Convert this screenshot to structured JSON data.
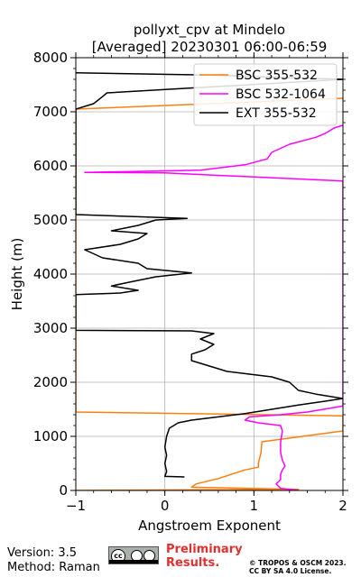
{
  "chart_data": {
    "type": "line",
    "title": [
      "pollyxt_cpv at Mindelo",
      "[Averaged] 20230301 06:00-06:59"
    ],
    "xlabel": "Angstroem Exponent",
    "ylabel": "Height (m)",
    "xlim": [
      -1,
      2
    ],
    "ylim": [
      0,
      8000
    ],
    "xticks": [
      -1,
      0,
      1,
      2
    ],
    "xtick_labels": [
      "−1",
      "0",
      "1",
      "2"
    ],
    "yticks": [
      0,
      1000,
      2000,
      3000,
      4000,
      5000,
      6000,
      7000,
      8000
    ],
    "grid": true,
    "legend_position": "top-right",
    "series": [
      {
        "name": "BSC 355-532",
        "color": "#ff7f0e",
        "points": [
          [
            -1.0,
            0
          ],
          [
            1.5,
            20
          ],
          [
            0.3,
            60
          ],
          [
            0.35,
            120
          ],
          [
            0.6,
            220
          ],
          [
            0.9,
            380
          ],
          [
            1.05,
            430
          ],
          [
            1.05,
            500
          ],
          [
            1.08,
            700
          ],
          [
            1.09,
            900
          ],
          [
            2.0,
            1100
          ],
          [
            2.0,
            1380
          ],
          [
            -1.0,
            1450
          ],
          [
            -1.0,
            7050
          ],
          [
            2.0,
            7250
          ]
        ]
      },
      {
        "name": "BSC 532-1064",
        "color": "#ff00ff",
        "points": [
          [
            1.5,
            0
          ],
          [
            1.3,
            40
          ],
          [
            1.25,
            120
          ],
          [
            1.3,
            200
          ],
          [
            1.3,
            300
          ],
          [
            1.32,
            380
          ],
          [
            1.35,
            450
          ],
          [
            1.32,
            560
          ],
          [
            1.3,
            700
          ],
          [
            1.3,
            900
          ],
          [
            1.32,
            1100
          ],
          [
            1.3,
            1200
          ],
          [
            1.05,
            1250
          ],
          [
            0.9,
            1300
          ],
          [
            0.95,
            1360
          ],
          [
            1.3,
            1400
          ],
          [
            1.6,
            1450
          ],
          [
            2.0,
            1560
          ],
          [
            2.0,
            5720
          ],
          [
            0.0,
            5870
          ],
          [
            -0.9,
            5880
          ],
          [
            0.4,
            5920
          ],
          [
            0.9,
            6020
          ],
          [
            1.15,
            6130
          ],
          [
            1.2,
            6250
          ],
          [
            1.4,
            6400
          ],
          [
            1.7,
            6530
          ],
          [
            1.8,
            6600
          ],
          [
            1.9,
            6700
          ],
          [
            2.0,
            6750
          ]
        ]
      },
      {
        "name": "EXT 355-532",
        "color": "#000000",
        "points": [
          [
            0.22,
            250
          ],
          [
            0.0,
            260
          ],
          [
            0.02,
            350
          ],
          [
            0.0,
            500
          ],
          [
            0.02,
            650
          ],
          [
            0.0,
            800
          ],
          [
            0.02,
            1000
          ],
          [
            0.05,
            1150
          ],
          [
            0.15,
            1250
          ],
          [
            0.3,
            1300
          ],
          [
            0.6,
            1360
          ],
          [
            0.9,
            1420
          ],
          [
            1.2,
            1500
          ],
          [
            1.5,
            1580
          ],
          [
            1.8,
            1650
          ],
          [
            2.0,
            1700
          ],
          [
            1.7,
            1780
          ],
          [
            1.5,
            1850
          ],
          [
            1.4,
            2000
          ],
          [
            1.2,
            2100
          ],
          [
            0.95,
            2150
          ],
          [
            0.7,
            2200
          ],
          [
            0.5,
            2300
          ],
          [
            0.3,
            2400
          ],
          [
            0.3,
            2520
          ],
          [
            0.45,
            2600
          ],
          [
            0.55,
            2700
          ],
          [
            0.4,
            2800
          ],
          [
            0.55,
            2900
          ],
          [
            0.3,
            2950
          ],
          [
            -1.0,
            2960
          ],
          [
            -1.0,
            3620
          ],
          [
            -0.5,
            3650
          ],
          [
            -0.3,
            3700
          ],
          [
            -0.6,
            3780
          ],
          [
            -0.4,
            3850
          ],
          [
            -0.1,
            3950
          ],
          [
            0.3,
            4020
          ],
          [
            -0.2,
            4100
          ],
          [
            -0.3,
            4200
          ],
          [
            -0.7,
            4300
          ],
          [
            -0.9,
            4450
          ],
          [
            -0.5,
            4550
          ],
          [
            -0.3,
            4650
          ],
          [
            -0.2,
            4750
          ],
          [
            -0.6,
            4800
          ],
          [
            -0.3,
            4900
          ],
          [
            -0.1,
            5000
          ],
          [
            0.25,
            5030
          ],
          [
            -1.0,
            5100
          ],
          [
            -1.0,
            7050
          ],
          [
            -0.8,
            7150
          ],
          [
            -0.7,
            7280
          ],
          [
            -0.65,
            7350
          ],
          [
            2.0,
            7600
          ],
          [
            0.5,
            7680
          ],
          [
            -1.0,
            7720
          ]
        ]
      }
    ]
  },
  "footer": {
    "version": "Version: 3.5",
    "method": "Method: Raman",
    "cc_label": "cc",
    "preliminary_line1": "Preliminary",
    "preliminary_line2": "Results.",
    "copyright_line1": "© TROPOS & OSCM 2023.",
    "copyright_line2": "CC BY SA 4.0 License."
  }
}
